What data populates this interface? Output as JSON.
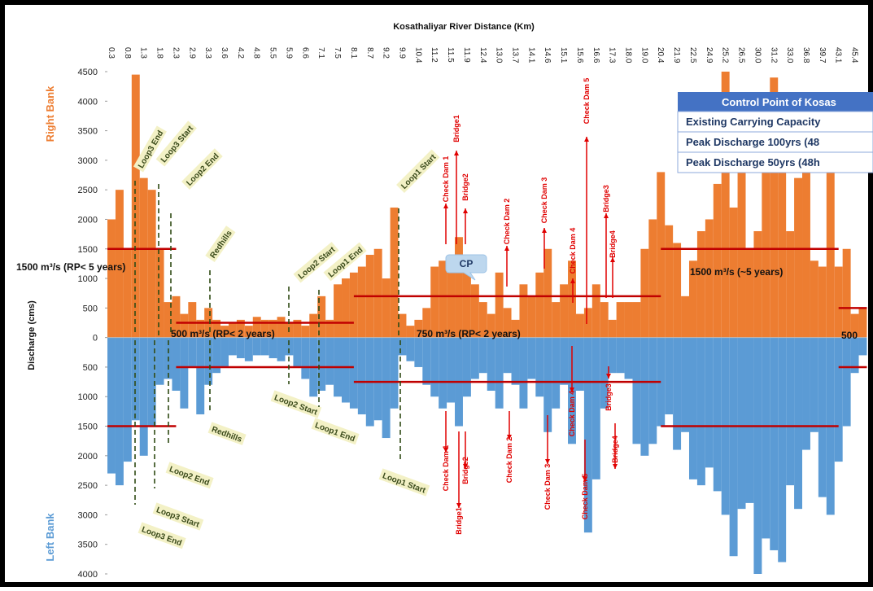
{
  "chart_data": {
    "type": "bar",
    "title": "Kosathaliyar River Distance (Km)",
    "ylabel": "Discharge (cms)",
    "right_bank_label": "Right Bank",
    "left_bank_label": "Left Bank",
    "categories": [
      "0.3",
      null,
      "0.8",
      null,
      "1.3",
      null,
      "1.8",
      null,
      "2.3",
      null,
      "2.9",
      null,
      "3.3",
      null,
      "3.6",
      null,
      "4.2",
      null,
      "4.8",
      null,
      "5.5",
      null,
      "5.9",
      null,
      "6.6",
      null,
      "7.1",
      null,
      "7.5",
      null,
      "8.1",
      null,
      "8.7",
      null,
      "9.2",
      null,
      "9.9",
      null,
      "10.4",
      null,
      "11.2",
      null,
      "11.5",
      null,
      "11.9",
      null,
      "12.4",
      null,
      "13.0",
      null,
      "13.7",
      null,
      "14.1",
      null,
      "14.6",
      null,
      "15.1",
      null,
      "15.6",
      null,
      "16.6",
      null,
      "17.3",
      null,
      "18.0",
      null,
      "19.0",
      null,
      "20.4",
      null,
      "21.9",
      null,
      "22.5",
      null,
      "24.9",
      null,
      "25.2",
      null,
      "26.5",
      null,
      "30.0",
      null,
      "31.2",
      null,
      "33.0",
      null,
      "36.8",
      null,
      "39.7",
      null,
      "43.1",
      null,
      "45.4",
      null
    ],
    "series": [
      {
        "name": "Right Bank",
        "color": "#ED7D31",
        "values": [
          2000,
          2500,
          1500,
          4450,
          2700,
          2500,
          1500,
          600,
          700,
          400,
          600,
          300,
          500,
          300,
          200,
          250,
          300,
          200,
          350,
          300,
          300,
          350,
          250,
          300,
          200,
          400,
          700,
          300,
          900,
          1000,
          1100,
          1200,
          1400,
          1500,
          1000,
          2200,
          400,
          200,
          300,
          500,
          1200,
          1300,
          1100,
          1700,
          1300,
          900,
          600,
          400,
          1100,
          500,
          300,
          900,
          700,
          1100,
          1500,
          600,
          900,
          1300,
          400,
          500,
          900,
          600,
          300,
          600,
          600,
          600,
          1500,
          2000,
          2800,
          1900,
          1600,
          700,
          1300,
          1800,
          2000,
          2600,
          4500,
          2200,
          2900,
          1500,
          1800,
          3000,
          4400,
          3000,
          1800,
          2700,
          2800,
          1300,
          1200,
          2800,
          1200,
          1500,
          400,
          500
        ]
      },
      {
        "name": "Left Bank",
        "color": "#5B9BD5",
        "values": [
          -2300,
          -2500,
          -2100,
          -1400,
          -2000,
          -1500,
          -800,
          -700,
          -900,
          -1200,
          -500,
          -1300,
          -800,
          -600,
          -500,
          -300,
          -350,
          -400,
          -300,
          -300,
          -350,
          -400,
          -300,
          -500,
          -700,
          -1000,
          -900,
          -800,
          -1000,
          -1100,
          -1200,
          -1300,
          -1500,
          -1400,
          -1700,
          -1200,
          -300,
          -400,
          -500,
          -800,
          -1000,
          -1200,
          -1100,
          -1500,
          -1000,
          -700,
          -600,
          -900,
          -1200,
          -600,
          -800,
          -1200,
          -700,
          -1000,
          -1600,
          -1200,
          -800,
          -1800,
          -900,
          -3300,
          -2400,
          -1200,
          -600,
          -600,
          -700,
          -1800,
          -2000,
          -1800,
          -1500,
          -1300,
          -1900,
          -1600,
          -2400,
          -2500,
          -2200,
          -2600,
          -3000,
          -3700,
          -2900,
          -2800,
          -4000,
          -3400,
          -3600,
          -3800,
          -2500,
          -2900,
          -1900,
          -1600,
          -2700,
          -3000,
          -2100,
          -1500,
          -600,
          -300
        ]
      }
    ],
    "ylim": [
      -4000,
      4500
    ],
    "yticks": [
      {
        "value": -4000,
        "label": "4000"
      },
      {
        "value": -3500,
        "label": "3500"
      },
      {
        "value": -3000,
        "label": "3000"
      },
      {
        "value": -2500,
        "label": "2500"
      },
      {
        "value": -2000,
        "label": "2000"
      },
      {
        "value": -1500,
        "label": "1500"
      },
      {
        "value": -1000,
        "label": "1000"
      },
      {
        "value": -500,
        "label": "500"
      },
      0,
      500,
      1000,
      1500,
      2000,
      2500,
      3000,
      3500,
      4000,
      4500
    ],
    "reference_lines": {
      "color": "#C00000",
      "lines": [
        {
          "value": 1500,
          "from": "0.3",
          "to": "2.3"
        },
        {
          "value": 250,
          "from": "2.3",
          "to": "8.1"
        },
        {
          "value": 700,
          "from": "8.1",
          "to": "20.4"
        },
        {
          "value": 1500,
          "from": "20.4",
          "to": "43.1"
        },
        {
          "value": 500,
          "from": "43.1",
          "to": "45.4"
        },
        {
          "value": -1500,
          "from": "0.3",
          "to": "2.3"
        },
        {
          "value": -500,
          "from": "2.3",
          "to": "8.1"
        },
        {
          "value": -750,
          "from": "8.1",
          "to": "20.4"
        },
        {
          "value": -1500,
          "from": "20.4",
          "to": "43.1"
        },
        {
          "value": -500,
          "from": "43.1",
          "to": "45.4"
        }
      ]
    },
    "threshold_labels": [
      "1500 m³/s (RP< 5 years)",
      "500 m³/s (RP< 2 years)",
      "750 m³/s (RP< 2 years)",
      "1500 m³/s (~5 years)",
      "500"
    ],
    "right_bank_markers": [
      "Loop3 End",
      "Loop3 Start",
      "Loop2 End",
      "Redhills",
      "Loop2 Start",
      "Loop1 End",
      "Loop1 Start"
    ],
    "left_bank_markers": [
      "Loop3 End",
      "Loop3 Start",
      "Loop2 End",
      "Redhills",
      "Loop2 Start",
      "Loop1 End",
      "Loop1 Start"
    ],
    "right_bank_structures": [
      "Check Dam 1",
      "Bridge1",
      "Bridge2",
      "Check Dam 2",
      "Check Dam 3",
      "Check Dam 4",
      "Check Dam 5",
      "Bridge3",
      "Bridge4"
    ],
    "left_bank_structures": [
      "Check Dam 1",
      "Bridge1",
      "Bridge2",
      "Check Dam 2",
      "Check Dam 3",
      "Check Dam 4",
      "Check Dam 5",
      "Bridge3",
      "Bridge4"
    ],
    "callout": "CP",
    "legend_box": {
      "title": "Control Point of Kosas",
      "rows": [
        "Existing Carrying Capacity",
        "Peak Discharge 100yrs (48",
        "Peak Discharge 50yrs (48h"
      ]
    }
  }
}
